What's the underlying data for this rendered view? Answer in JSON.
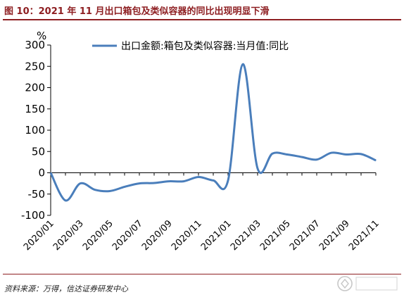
{
  "figure": {
    "title": "图 10：2021 年 11 月出口箱包及类似容器的同比出现明显下滑",
    "source": "资料来源：万得，信达证券研发中心",
    "watermark": "格隆汇"
  },
  "colors": {
    "accent": "#8e1f22",
    "line": "#4a7ebb"
  },
  "chart_data": {
    "type": "line",
    "ylabel": "%",
    "ylim": [
      -100,
      300
    ],
    "yticks": [
      -100,
      -50,
      0,
      50,
      100,
      150,
      200,
      250,
      300
    ],
    "grid": false,
    "legend": "top-right",
    "x_tick_labels": [
      "2020/01",
      "2020/03",
      "2020/05",
      "2020/07",
      "2020/09",
      "2020/11",
      "2021/01",
      "2021/03",
      "2021/05",
      "2021/07",
      "2021/09",
      "2021/11"
    ],
    "x": [
      "2020/01",
      "2020/02",
      "2020/03",
      "2020/04",
      "2020/05",
      "2020/06",
      "2020/07",
      "2020/08",
      "2020/09",
      "2020/10",
      "2020/11",
      "2020/12",
      "2021/01",
      "2021/02",
      "2021/03",
      "2021/04",
      "2021/05",
      "2021/06",
      "2021/07",
      "2021/08",
      "2021/09",
      "2021/10",
      "2021/11"
    ],
    "series": [
      {
        "name": "出口金额:箱包及类似容器:当月值:同比",
        "values": [
          0,
          -65,
          -25,
          -40,
          -43,
          -33,
          -25,
          -24,
          -20,
          -20,
          -10,
          -18,
          -18,
          255,
          10,
          45,
          43,
          37,
          31,
          47,
          43,
          44,
          29
        ]
      }
    ]
  }
}
